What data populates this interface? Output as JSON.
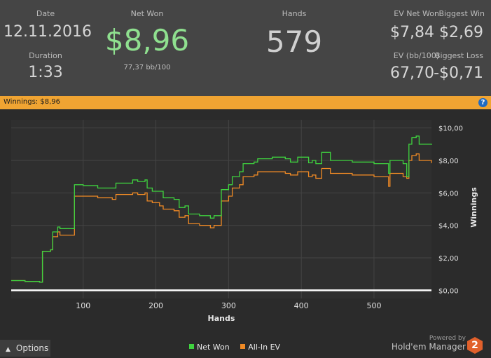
{
  "header": {
    "date_label": "Date",
    "date_value": "12.11.2016",
    "duration_label": "Duration",
    "duration_value": "1:33",
    "net_won_label": "Net Won",
    "net_won_value": "$8,96",
    "bb100": "77,37 bb/100",
    "hands_label": "Hands",
    "hands_value": "579",
    "ev_net_won_label": "EV Net Won",
    "ev_net_won_value": "$7,84",
    "biggest_win_label": "Biggest Win",
    "biggest_win_value": "$2,69",
    "ev_bb100_label": "EV (bb/100)",
    "ev_bb100_value": "67,70",
    "biggest_loss_label": "Biggest Loss",
    "biggest_loss_value": "-$0,71"
  },
  "banner": {
    "text": "Winnings: $8,96",
    "help_icon": "question-icon"
  },
  "footer": {
    "options_label": "Options",
    "powered_by": "Powered by",
    "brand": "Hold'em Manager",
    "logo_text": "2"
  },
  "colors": {
    "net_won": "#3fd43f",
    "all_in_ev": "#f08a25",
    "net_won_text": "#8fe08f",
    "banner": "#f0a432"
  },
  "chart_data": {
    "type": "line",
    "xlabel": "Hands",
    "ylabel": "Winnings",
    "xlim": [
      1,
      579
    ],
    "ylim": [
      -0.5,
      10.5
    ],
    "x_ticks": [
      100,
      200,
      300,
      400,
      500
    ],
    "y_ticks": [
      0,
      2,
      4,
      6,
      8,
      10
    ],
    "y_tick_labels": [
      "$0,00",
      "$2,00",
      "$4,00",
      "$6,00",
      "$8,00",
      "$10,00"
    ],
    "grid": true,
    "legend_position": "bottom",
    "series": [
      {
        "name": "Net Won",
        "points": [
          [
            1,
            0.6
          ],
          [
            20,
            0.55
          ],
          [
            40,
            0.5
          ],
          [
            44,
            2.4
          ],
          [
            55,
            2.5
          ],
          [
            58,
            3.6
          ],
          [
            65,
            3.9
          ],
          [
            68,
            3.8
          ],
          [
            85,
            3.8
          ],
          [
            88,
            6.5
          ],
          [
            100,
            6.45
          ],
          [
            120,
            6.3
          ],
          [
            140,
            6.3
          ],
          [
            145,
            6.6
          ],
          [
            160,
            6.6
          ],
          [
            168,
            6.8
          ],
          [
            175,
            6.7
          ],
          [
            185,
            6.8
          ],
          [
            188,
            6.3
          ],
          [
            195,
            6.1
          ],
          [
            205,
            6.1
          ],
          [
            210,
            5.7
          ],
          [
            225,
            5.6
          ],
          [
            232,
            5.1
          ],
          [
            240,
            5.2
          ],
          [
            245,
            4.7
          ],
          [
            260,
            4.6
          ],
          [
            275,
            4.45
          ],
          [
            280,
            4.6
          ],
          [
            290,
            6.2
          ],
          [
            300,
            6.5
          ],
          [
            305,
            7.0
          ],
          [
            315,
            7.3
          ],
          [
            320,
            7.8
          ],
          [
            335,
            7.9
          ],
          [
            340,
            8.1
          ],
          [
            360,
            8.2
          ],
          [
            378,
            8.1
          ],
          [
            385,
            7.9
          ],
          [
            395,
            8.2
          ],
          [
            410,
            7.85
          ],
          [
            415,
            8.0
          ],
          [
            420,
            7.8
          ],
          [
            428,
            8.5
          ],
          [
            440,
            8.0
          ],
          [
            470,
            7.9
          ],
          [
            500,
            7.8
          ],
          [
            515,
            7.8
          ],
          [
            520,
            7.2
          ],
          [
            522,
            8.0
          ],
          [
            540,
            7.8
          ],
          [
            545,
            7.0
          ],
          [
            548,
            9.0
          ],
          [
            552,
            9.4
          ],
          [
            558,
            9.5
          ],
          [
            562,
            9.0
          ],
          [
            579,
            8.96
          ]
        ]
      },
      {
        "name": "All-In EV",
        "points": [
          [
            1,
            0.6
          ],
          [
            20,
            0.55
          ],
          [
            40,
            0.5
          ],
          [
            44,
            2.4
          ],
          [
            55,
            2.5
          ],
          [
            58,
            3.3
          ],
          [
            65,
            3.6
          ],
          [
            68,
            3.4
          ],
          [
            85,
            3.4
          ],
          [
            88,
            5.8
          ],
          [
            100,
            5.8
          ],
          [
            120,
            5.7
          ],
          [
            140,
            5.6
          ],
          [
            145,
            5.9
          ],
          [
            160,
            5.9
          ],
          [
            168,
            6.0
          ],
          [
            175,
            5.9
          ],
          [
            185,
            6.0
          ],
          [
            188,
            5.5
          ],
          [
            195,
            5.4
          ],
          [
            205,
            5.2
          ],
          [
            210,
            5.0
          ],
          [
            225,
            4.9
          ],
          [
            232,
            4.5
          ],
          [
            240,
            4.6
          ],
          [
            245,
            4.1
          ],
          [
            260,
            4.0
          ],
          [
            275,
            3.85
          ],
          [
            280,
            4.0
          ],
          [
            290,
            5.5
          ],
          [
            300,
            5.8
          ],
          [
            305,
            6.3
          ],
          [
            315,
            6.5
          ],
          [
            320,
            7.0
          ],
          [
            335,
            7.1
          ],
          [
            340,
            7.3
          ],
          [
            360,
            7.3
          ],
          [
            378,
            7.2
          ],
          [
            385,
            7.1
          ],
          [
            395,
            7.3
          ],
          [
            410,
            7.0
          ],
          [
            415,
            7.1
          ],
          [
            420,
            6.9
          ],
          [
            428,
            7.5
          ],
          [
            440,
            7.2
          ],
          [
            470,
            7.1
          ],
          [
            500,
            7.0
          ],
          [
            515,
            7.0
          ],
          [
            520,
            6.4
          ],
          [
            522,
            7.2
          ],
          [
            540,
            7.0
          ],
          [
            545,
            6.9
          ],
          [
            548,
            8.0
          ],
          [
            552,
            8.3
          ],
          [
            558,
            8.4
          ],
          [
            562,
            8.0
          ],
          [
            579,
            7.84
          ]
        ]
      }
    ]
  }
}
